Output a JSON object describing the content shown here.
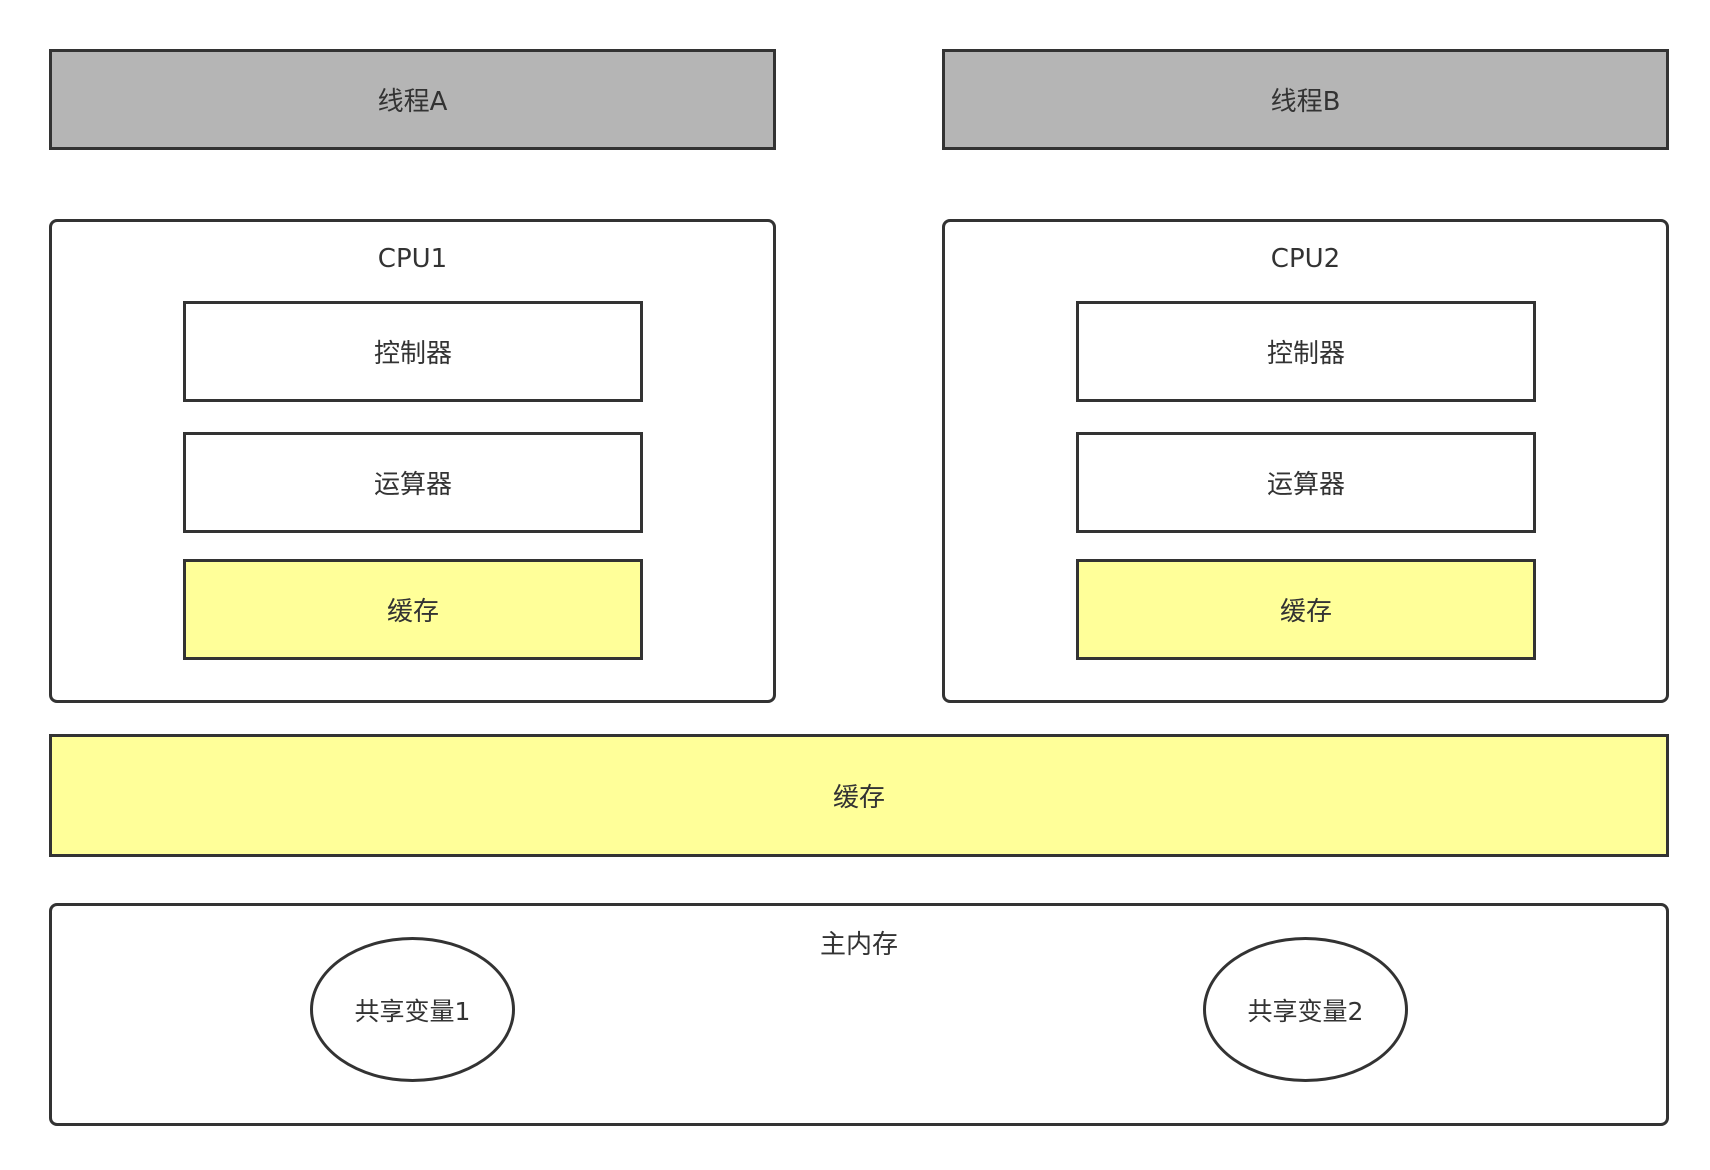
{
  "threads": {
    "a": "线程A",
    "b": "线程B"
  },
  "cpus": [
    {
      "title": "CPU1",
      "controller": "控制器",
      "alu": "运算器",
      "cache": "缓存"
    },
    {
      "title": "CPU2",
      "controller": "控制器",
      "alu": "运算器",
      "cache": "缓存"
    }
  ],
  "shared_cache": "缓存",
  "main_memory": {
    "title": "主内存",
    "variables": [
      "共享变量1",
      "共享变量2"
    ]
  },
  "colors": {
    "thread_fill": "#b5b5b5",
    "cache_fill": "#ffff99",
    "stroke": "#333333",
    "background": "#ffffff"
  }
}
